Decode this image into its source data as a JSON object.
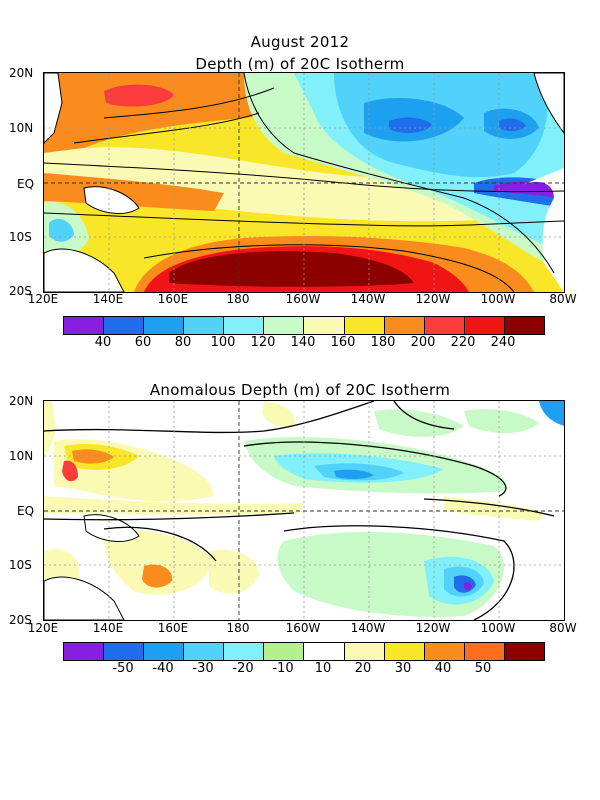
{
  "top": {
    "title_line1": "August 2012",
    "title_line2": "Depth (m) of 20C Isotherm"
  },
  "bottom": {
    "title": "Anomalous Depth (m) of 20C Isotherm"
  },
  "lat_labels": [
    "20N",
    "10N",
    "EQ",
    "10S",
    "20S"
  ],
  "lon_labels": [
    "120E",
    "140E",
    "160E",
    "180",
    "160W",
    "140W",
    "120W",
    "100W",
    "80W"
  ],
  "top_colorbar": {
    "colors": [
      "#8a1ee0",
      "#1e6eeb",
      "#1ea0f0",
      "#50d2fa",
      "#82f0fa",
      "#c8fac8",
      "#fafab4",
      "#fae628",
      "#fa8c1e",
      "#fa3c3c",
      "#f01414",
      "#8c0000"
    ],
    "ticks": [
      "40",
      "60",
      "80",
      "100",
      "120",
      "140",
      "160",
      "180",
      "200",
      "220",
      "240"
    ]
  },
  "bottom_colorbar": {
    "colors": [
      "#8a1ee0",
      "#1e6eeb",
      "#1ea0f0",
      "#50d2fa",
      "#82f0fa",
      "#b4f08c",
      "#ffffff",
      "#fafab4",
      "#fae628",
      "#fa8c1e",
      "#fa6e1e",
      "#8c0000"
    ],
    "ticks": [
      "-50",
      "-40",
      "-30",
      "-20",
      "-10",
      "10",
      "20",
      "30",
      "40",
      "50"
    ]
  }
}
